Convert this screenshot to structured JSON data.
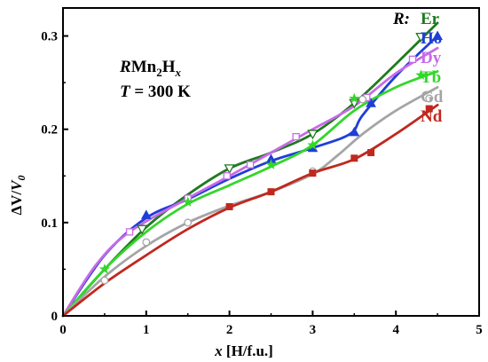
{
  "chart_data": {
    "type": "line",
    "xlabel": {
      "var": "x",
      "unit": " [H/f.u.]"
    },
    "ylabel": {
      "main": "ΔV/",
      "var": "V",
      "sub": "0"
    },
    "xlim": [
      0,
      5
    ],
    "ylim": [
      0,
      0.33
    ],
    "x_ticks": [
      "0",
      "1",
      "2",
      "3",
      "4",
      "5"
    ],
    "y_ticks": [
      "0",
      "0.1",
      "0.2",
      "0.3"
    ],
    "annotation": {
      "formula": {
        "r": "R",
        "mn": "Mn",
        "n2": "2",
        "h": "H",
        "x": "x"
      },
      "temperature": {
        "t": "T",
        "rest": " = 300 K"
      }
    },
    "legend_title": "R:",
    "series": [
      {
        "name": "Er",
        "color": "#1f7a1f",
        "marker": "triangle-down-open",
        "points": [
          [
            0.95,
            0.093
          ],
          [
            2.0,
            0.158
          ],
          [
            3.0,
            0.195
          ],
          [
            3.5,
            0.228
          ],
          [
            4.3,
            0.299
          ]
        ],
        "curve": [
          [
            0,
            0
          ],
          [
            0.5,
            0.05
          ],
          [
            1.0,
            0.095
          ],
          [
            1.5,
            0.13
          ],
          [
            2.0,
            0.158
          ],
          [
            2.5,
            0.175
          ],
          [
            3.0,
            0.195
          ],
          [
            3.5,
            0.228
          ],
          [
            4.0,
            0.27
          ],
          [
            4.5,
            0.314
          ]
        ]
      },
      {
        "name": "Ho",
        "color": "#1f3fd6",
        "marker": "triangle-up-filled",
        "points": [
          [
            1.0,
            0.108
          ],
          [
            2.5,
            0.168
          ],
          [
            3.0,
            0.18
          ],
          [
            3.5,
            0.197
          ],
          [
            3.7,
            0.228
          ],
          [
            4.5,
            0.3
          ]
        ],
        "curve": [
          [
            0,
            0
          ],
          [
            0.5,
            0.065
          ],
          [
            1.0,
            0.105
          ],
          [
            1.5,
            0.125
          ],
          [
            2.0,
            0.147
          ],
          [
            2.5,
            0.166
          ],
          [
            3.0,
            0.18
          ],
          [
            3.45,
            0.195
          ],
          [
            3.6,
            0.215
          ],
          [
            4.0,
            0.257
          ],
          [
            4.5,
            0.3
          ]
        ]
      },
      {
        "name": "Dy",
        "color": "#c86ae8",
        "marker": "square-open",
        "points": [
          [
            0.8,
            0.09
          ],
          [
            1.5,
            0.126
          ],
          [
            1.97,
            0.15
          ],
          [
            2.25,
            0.162
          ],
          [
            2.8,
            0.192
          ],
          [
            3.65,
            0.234
          ],
          [
            4.2,
            0.275
          ]
        ],
        "curve": [
          [
            0,
            0
          ],
          [
            0.4,
            0.055
          ],
          [
            0.8,
            0.09
          ],
          [
            1.5,
            0.126
          ],
          [
            2.0,
            0.15
          ],
          [
            2.5,
            0.175
          ],
          [
            3.0,
            0.2
          ],
          [
            3.5,
            0.225
          ],
          [
            4.0,
            0.26
          ],
          [
            4.5,
            0.287
          ]
        ]
      },
      {
        "name": "Tb",
        "color": "#33d62b",
        "marker": "star",
        "points": [
          [
            0.5,
            0.05
          ],
          [
            1.5,
            0.122
          ],
          [
            2.5,
            0.162
          ],
          [
            3.0,
            0.183
          ],
          [
            3.5,
            0.233
          ],
          [
            4.3,
            0.258
          ]
        ],
        "curve": [
          [
            0,
            0
          ],
          [
            0.5,
            0.05
          ],
          [
            1.0,
            0.09
          ],
          [
            1.5,
            0.12
          ],
          [
            2.0,
            0.14
          ],
          [
            2.5,
            0.16
          ],
          [
            3.0,
            0.183
          ],
          [
            3.5,
            0.22
          ],
          [
            4.0,
            0.245
          ],
          [
            4.5,
            0.262
          ]
        ]
      },
      {
        "name": "Gd",
        "color": "#a5a5a5",
        "marker": "circle-open",
        "points": [
          [
            0.5,
            0.038
          ],
          [
            1.0,
            0.079
          ],
          [
            1.5,
            0.1
          ],
          [
            3.0,
            0.155
          ],
          [
            3.6,
            0.232
          ],
          [
            4.4,
            0.233
          ]
        ],
        "curve": [
          [
            0,
            0
          ],
          [
            0.5,
            0.042
          ],
          [
            1.0,
            0.075
          ],
          [
            1.5,
            0.1
          ],
          [
            2.0,
            0.118
          ],
          [
            2.5,
            0.133
          ],
          [
            3.0,
            0.152
          ],
          [
            3.3,
            0.172
          ],
          [
            3.6,
            0.195
          ],
          [
            4.0,
            0.22
          ],
          [
            4.5,
            0.245
          ]
        ]
      },
      {
        "name": "Nd",
        "color": "#c0281e",
        "marker": "square-filled",
        "points": [
          [
            2.0,
            0.117
          ],
          [
            2.5,
            0.133
          ],
          [
            3.0,
            0.153
          ],
          [
            3.5,
            0.169
          ],
          [
            3.7,
            0.175
          ],
          [
            4.4,
            0.222
          ]
        ],
        "curve": [
          [
            0,
            0
          ],
          [
            0.5,
            0.035
          ],
          [
            1.0,
            0.065
          ],
          [
            1.5,
            0.093
          ],
          [
            2.0,
            0.116
          ],
          [
            2.5,
            0.133
          ],
          [
            3.0,
            0.153
          ],
          [
            3.5,
            0.168
          ],
          [
            4.0,
            0.195
          ],
          [
            4.5,
            0.226
          ]
        ]
      }
    ]
  }
}
